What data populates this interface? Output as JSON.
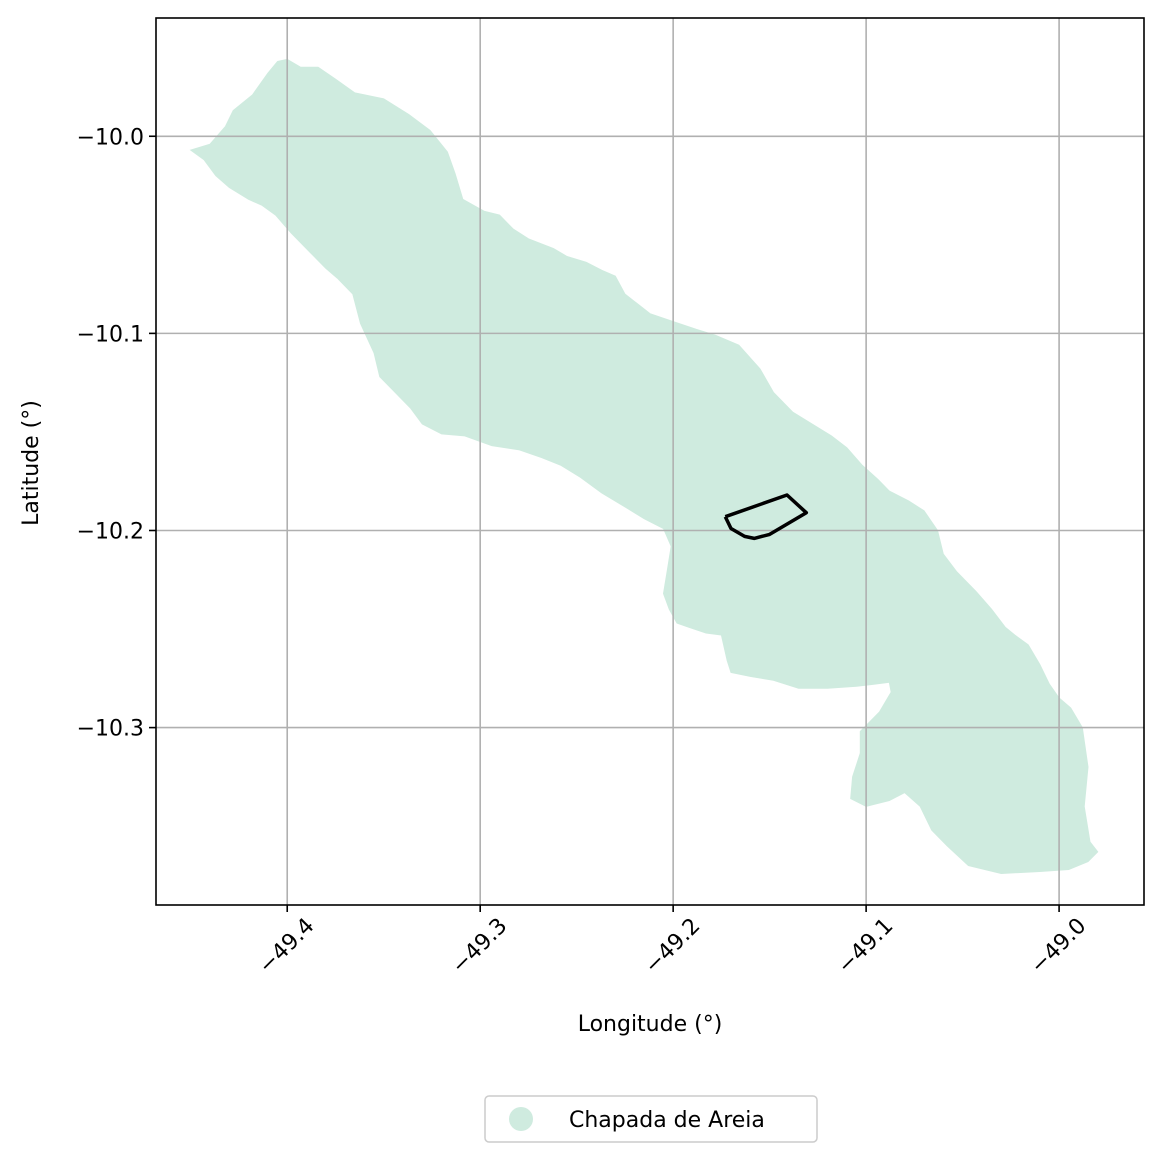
{
  "map": {
    "xlabel": "Longitude (°)",
    "ylabel": "Latitude (°)",
    "xlim": [
      -49.468,
      -48.956
    ],
    "ylim": [
      -10.39,
      -9.94
    ],
    "xticks": [
      -49.4,
      -49.3,
      -49.2,
      -49.1,
      -49.0
    ],
    "xtick_labels": [
      "−49.4",
      "−49.3",
      "−49.2",
      "−49.1",
      "−49.0"
    ],
    "yticks": [
      -10.0,
      -10.1,
      -10.2,
      -10.3
    ],
    "ytick_labels": [
      "−10.0",
      "−10.1",
      "−10.2",
      "−10.3"
    ],
    "grid": true,
    "region": {
      "name": "Chapada de Areia",
      "fill": "#cfebdf",
      "outline_lonlat": [
        [
          -49.45,
          -10.007
        ],
        [
          -49.44,
          -10.004
        ],
        [
          -49.432,
          -9.995
        ],
        [
          -49.428,
          -9.987
        ],
        [
          -49.418,
          -9.979
        ],
        [
          -49.41,
          -9.968
        ],
        [
          -49.405,
          -9.962
        ],
        [
          -49.4,
          -9.961
        ],
        [
          -49.393,
          -9.965
        ],
        [
          -49.384,
          -9.965
        ],
        [
          -49.375,
          -9.971
        ],
        [
          -49.365,
          -9.978
        ],
        [
          -49.35,
          -9.981
        ],
        [
          -49.337,
          -9.989
        ],
        [
          -49.326,
          -9.997
        ],
        [
          -49.317,
          -10.008
        ],
        [
          -49.313,
          -10.019
        ],
        [
          -49.309,
          -10.032
        ],
        [
          -49.298,
          -10.038
        ],
        [
          -49.29,
          -10.04
        ],
        [
          -49.283,
          -10.047
        ],
        [
          -49.275,
          -10.052
        ],
        [
          -49.262,
          -10.057
        ],
        [
          -49.255,
          -10.061
        ],
        [
          -49.245,
          -10.064
        ],
        [
          -49.237,
          -10.068
        ],
        [
          -49.23,
          -10.071
        ],
        [
          -49.225,
          -10.08
        ],
        [
          -49.212,
          -10.09
        ],
        [
          -49.2,
          -10.094
        ],
        [
          -49.188,
          -10.098
        ],
        [
          -49.178,
          -10.101
        ],
        [
          -49.166,
          -10.106
        ],
        [
          -49.155,
          -10.118
        ],
        [
          -49.148,
          -10.13
        ],
        [
          -49.138,
          -10.14
        ],
        [
          -49.128,
          -10.146
        ],
        [
          -49.118,
          -10.152
        ],
        [
          -49.11,
          -10.158
        ],
        [
          -49.102,
          -10.167
        ],
        [
          -49.094,
          -10.174
        ],
        [
          -49.088,
          -10.18
        ],
        [
          -49.078,
          -10.185
        ],
        [
          -49.07,
          -10.19
        ],
        [
          -49.063,
          -10.2
        ],
        [
          -49.06,
          -10.212
        ],
        [
          -49.053,
          -10.221
        ],
        [
          -49.043,
          -10.231
        ],
        [
          -49.035,
          -10.24
        ],
        [
          -49.028,
          -10.249
        ],
        [
          -49.023,
          -10.253
        ],
        [
          -49.016,
          -10.258
        ],
        [
          -49.01,
          -10.268
        ],
        [
          -49.005,
          -10.278
        ],
        [
          -49.0,
          -10.285
        ],
        [
          -48.994,
          -10.29
        ],
        [
          -48.988,
          -10.3
        ],
        [
          -48.985,
          -10.32
        ],
        [
          -48.987,
          -10.34
        ],
        [
          -48.984,
          -10.358
        ],
        [
          -48.98,
          -10.363
        ],
        [
          -48.985,
          -10.368
        ],
        [
          -48.995,
          -10.372
        ],
        [
          -49.01,
          -10.373
        ],
        [
          -49.03,
          -10.374
        ],
        [
          -49.047,
          -10.37
        ],
        [
          -49.058,
          -10.36
        ],
        [
          -49.066,
          -10.352
        ],
        [
          -49.072,
          -10.34
        ],
        [
          -49.08,
          -10.333
        ],
        [
          -49.088,
          -10.337
        ],
        [
          -49.1,
          -10.34
        ],
        [
          -49.108,
          -10.336
        ],
        [
          -49.107,
          -10.325
        ],
        [
          -49.103,
          -10.313
        ],
        [
          -49.103,
          -10.302
        ],
        [
          -49.093,
          -10.292
        ],
        [
          -49.087,
          -10.282
        ],
        [
          -49.088,
          -10.277
        ],
        [
          -49.096,
          -10.278
        ],
        [
          -49.105,
          -10.279
        ],
        [
          -49.12,
          -10.28
        ],
        [
          -49.135,
          -10.28
        ],
        [
          -49.148,
          -10.276
        ],
        [
          -49.16,
          -10.274
        ],
        [
          -49.17,
          -10.272
        ],
        [
          -49.172,
          -10.266
        ],
        [
          -49.175,
          -10.253
        ],
        [
          -49.183,
          -10.252
        ],
        [
          -49.192,
          -10.249
        ],
        [
          -49.198,
          -10.247
        ],
        [
          -49.202,
          -10.24
        ],
        [
          -49.205,
          -10.232
        ],
        [
          -49.203,
          -10.22
        ],
        [
          -49.201,
          -10.208
        ],
        [
          -49.205,
          -10.199
        ],
        [
          -49.215,
          -10.194
        ],
        [
          -49.225,
          -10.188
        ],
        [
          -49.237,
          -10.181
        ],
        [
          -49.248,
          -10.173
        ],
        [
          -49.258,
          -10.167
        ],
        [
          -49.268,
          -10.163
        ],
        [
          -49.28,
          -10.159
        ],
        [
          -49.294,
          -10.157
        ],
        [
          -49.308,
          -10.152
        ],
        [
          -49.32,
          -10.151
        ],
        [
          -49.33,
          -10.146
        ],
        [
          -49.336,
          -10.138
        ],
        [
          -49.344,
          -10.13
        ],
        [
          -49.352,
          -10.122
        ],
        [
          -49.355,
          -10.11
        ],
        [
          -49.362,
          -10.095
        ],
        [
          -49.366,
          -10.08
        ],
        [
          -49.374,
          -10.072
        ],
        [
          -49.38,
          -10.067
        ],
        [
          -49.388,
          -10.059
        ],
        [
          -49.398,
          -10.049
        ],
        [
          -49.406,
          -10.04
        ],
        [
          -49.413,
          -10.035
        ],
        [
          -49.42,
          -10.032
        ],
        [
          -49.43,
          -10.026
        ],
        [
          -49.437,
          -10.02
        ],
        [
          -49.443,
          -10.012
        ],
        [
          -49.45,
          -10.007
        ]
      ]
    },
    "area_outline": {
      "color": "#000000",
      "points_lonlat": [
        [
          -49.173,
          -10.193
        ],
        [
          -49.141,
          -10.182
        ],
        [
          -49.131,
          -10.191
        ],
        [
          -49.15,
          -10.202
        ],
        [
          -49.158,
          -10.204
        ],
        [
          -49.163,
          -10.203
        ],
        [
          -49.17,
          -10.199
        ],
        [
          -49.173,
          -10.193
        ]
      ]
    },
    "legend": {
      "label": "Chapada de Areia",
      "placement": "bottom-center"
    }
  }
}
